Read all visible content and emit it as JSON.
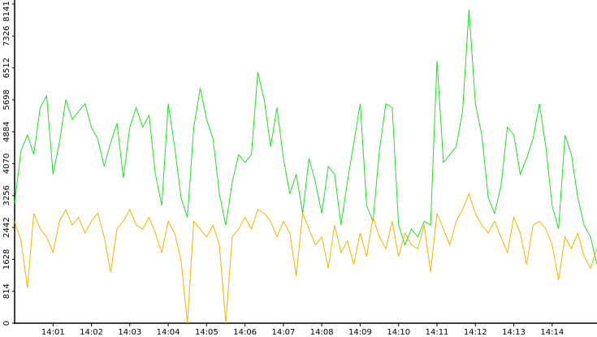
{
  "chart_data": {
    "type": "line",
    "categories": [
      null,
      null,
      null,
      null,
      null,
      null,
      "14:01",
      null,
      null,
      null,
      null,
      null,
      "14:02",
      null,
      null,
      null,
      null,
      null,
      "14:03",
      null,
      null,
      null,
      null,
      null,
      "14:04",
      null,
      null,
      null,
      null,
      null,
      "14:05",
      null,
      null,
      null,
      null,
      null,
      "14:06",
      null,
      null,
      null,
      null,
      null,
      "14:07",
      null,
      null,
      null,
      null,
      null,
      "14:08",
      null,
      null,
      null,
      null,
      null,
      "14:09",
      null,
      null,
      null,
      null,
      null,
      "14:10",
      null,
      null,
      null,
      null,
      null,
      "14:11",
      null,
      null,
      null,
      null,
      null,
      "14:12",
      null,
      null,
      null,
      null,
      null,
      "14:13",
      null,
      null,
      null,
      null,
      null,
      "14:14",
      null,
      null,
      null,
      null,
      null,
      null,
      null
    ],
    "series": [
      {
        "color": "#22dd22",
        "values": [
          3060,
          4400,
          4800,
          4300,
          5500,
          5800,
          3800,
          4600,
          5700,
          5200,
          5400,
          5600,
          5000,
          4700,
          4000,
          4600,
          5100,
          3700,
          5000,
          5500,
          5000,
          5300,
          3800,
          3000,
          5600,
          4500,
          3200,
          2700,
          5000,
          6000,
          5200,
          4700,
          3300,
          2500,
          3600,
          4300,
          4100,
          4300,
          6400,
          5700,
          4500,
          5500,
          4200,
          3300,
          3800,
          2800,
          4200,
          3600,
          2800,
          4000,
          3800,
          2500,
          3600,
          4600,
          5600,
          3000,
          2600,
          4400,
          5600,
          5500,
          2500,
          2000,
          2400,
          2200,
          2600,
          2500,
          6700,
          4100,
          4300,
          4500,
          5400,
          8000,
          5600,
          4800,
          3200,
          2800,
          3500,
          5000,
          4800,
          3800,
          4200,
          4700,
          5600,
          4500,
          3000,
          2400,
          4800,
          4300,
          3200,
          2500,
          2200,
          1500
        ]
      },
      {
        "color": "#f0b400",
        "values": [
          2600,
          2100,
          900,
          2800,
          2400,
          2200,
          1800,
          2600,
          2900,
          2500,
          2700,
          2300,
          2600,
          2800,
          2200,
          1300,
          2400,
          2600,
          2900,
          2500,
          2400,
          2700,
          2300,
          1800,
          2600,
          2300,
          1600,
          0,
          2600,
          2400,
          2200,
          2500,
          2000,
          0,
          2200,
          2400,
          2700,
          2400,
          2900,
          2800,
          2600,
          2200,
          2600,
          2300,
          1200,
          2800,
          2400,
          2000,
          2200,
          1400,
          2500,
          1800,
          2100,
          1500,
          2300,
          1700,
          2700,
          2200,
          1900,
          2600,
          1700,
          2300,
          2000,
          1900,
          2500,
          1300,
          2800,
          2400,
          2000,
          2600,
          2900,
          3300,
          2800,
          2500,
          2300,
          2600,
          2200,
          1800,
          2700,
          2300,
          1500,
          2500,
          2600,
          2400,
          2000,
          1100,
          2200,
          1900,
          2300,
          1700,
          1400,
          1900
        ]
      }
    ],
    "ylim": [
      0,
      8141
    ],
    "yticks": [
      0,
      814,
      1628,
      2442,
      3256,
      4070,
      4884,
      5698,
      6512,
      7326,
      8141
    ]
  }
}
